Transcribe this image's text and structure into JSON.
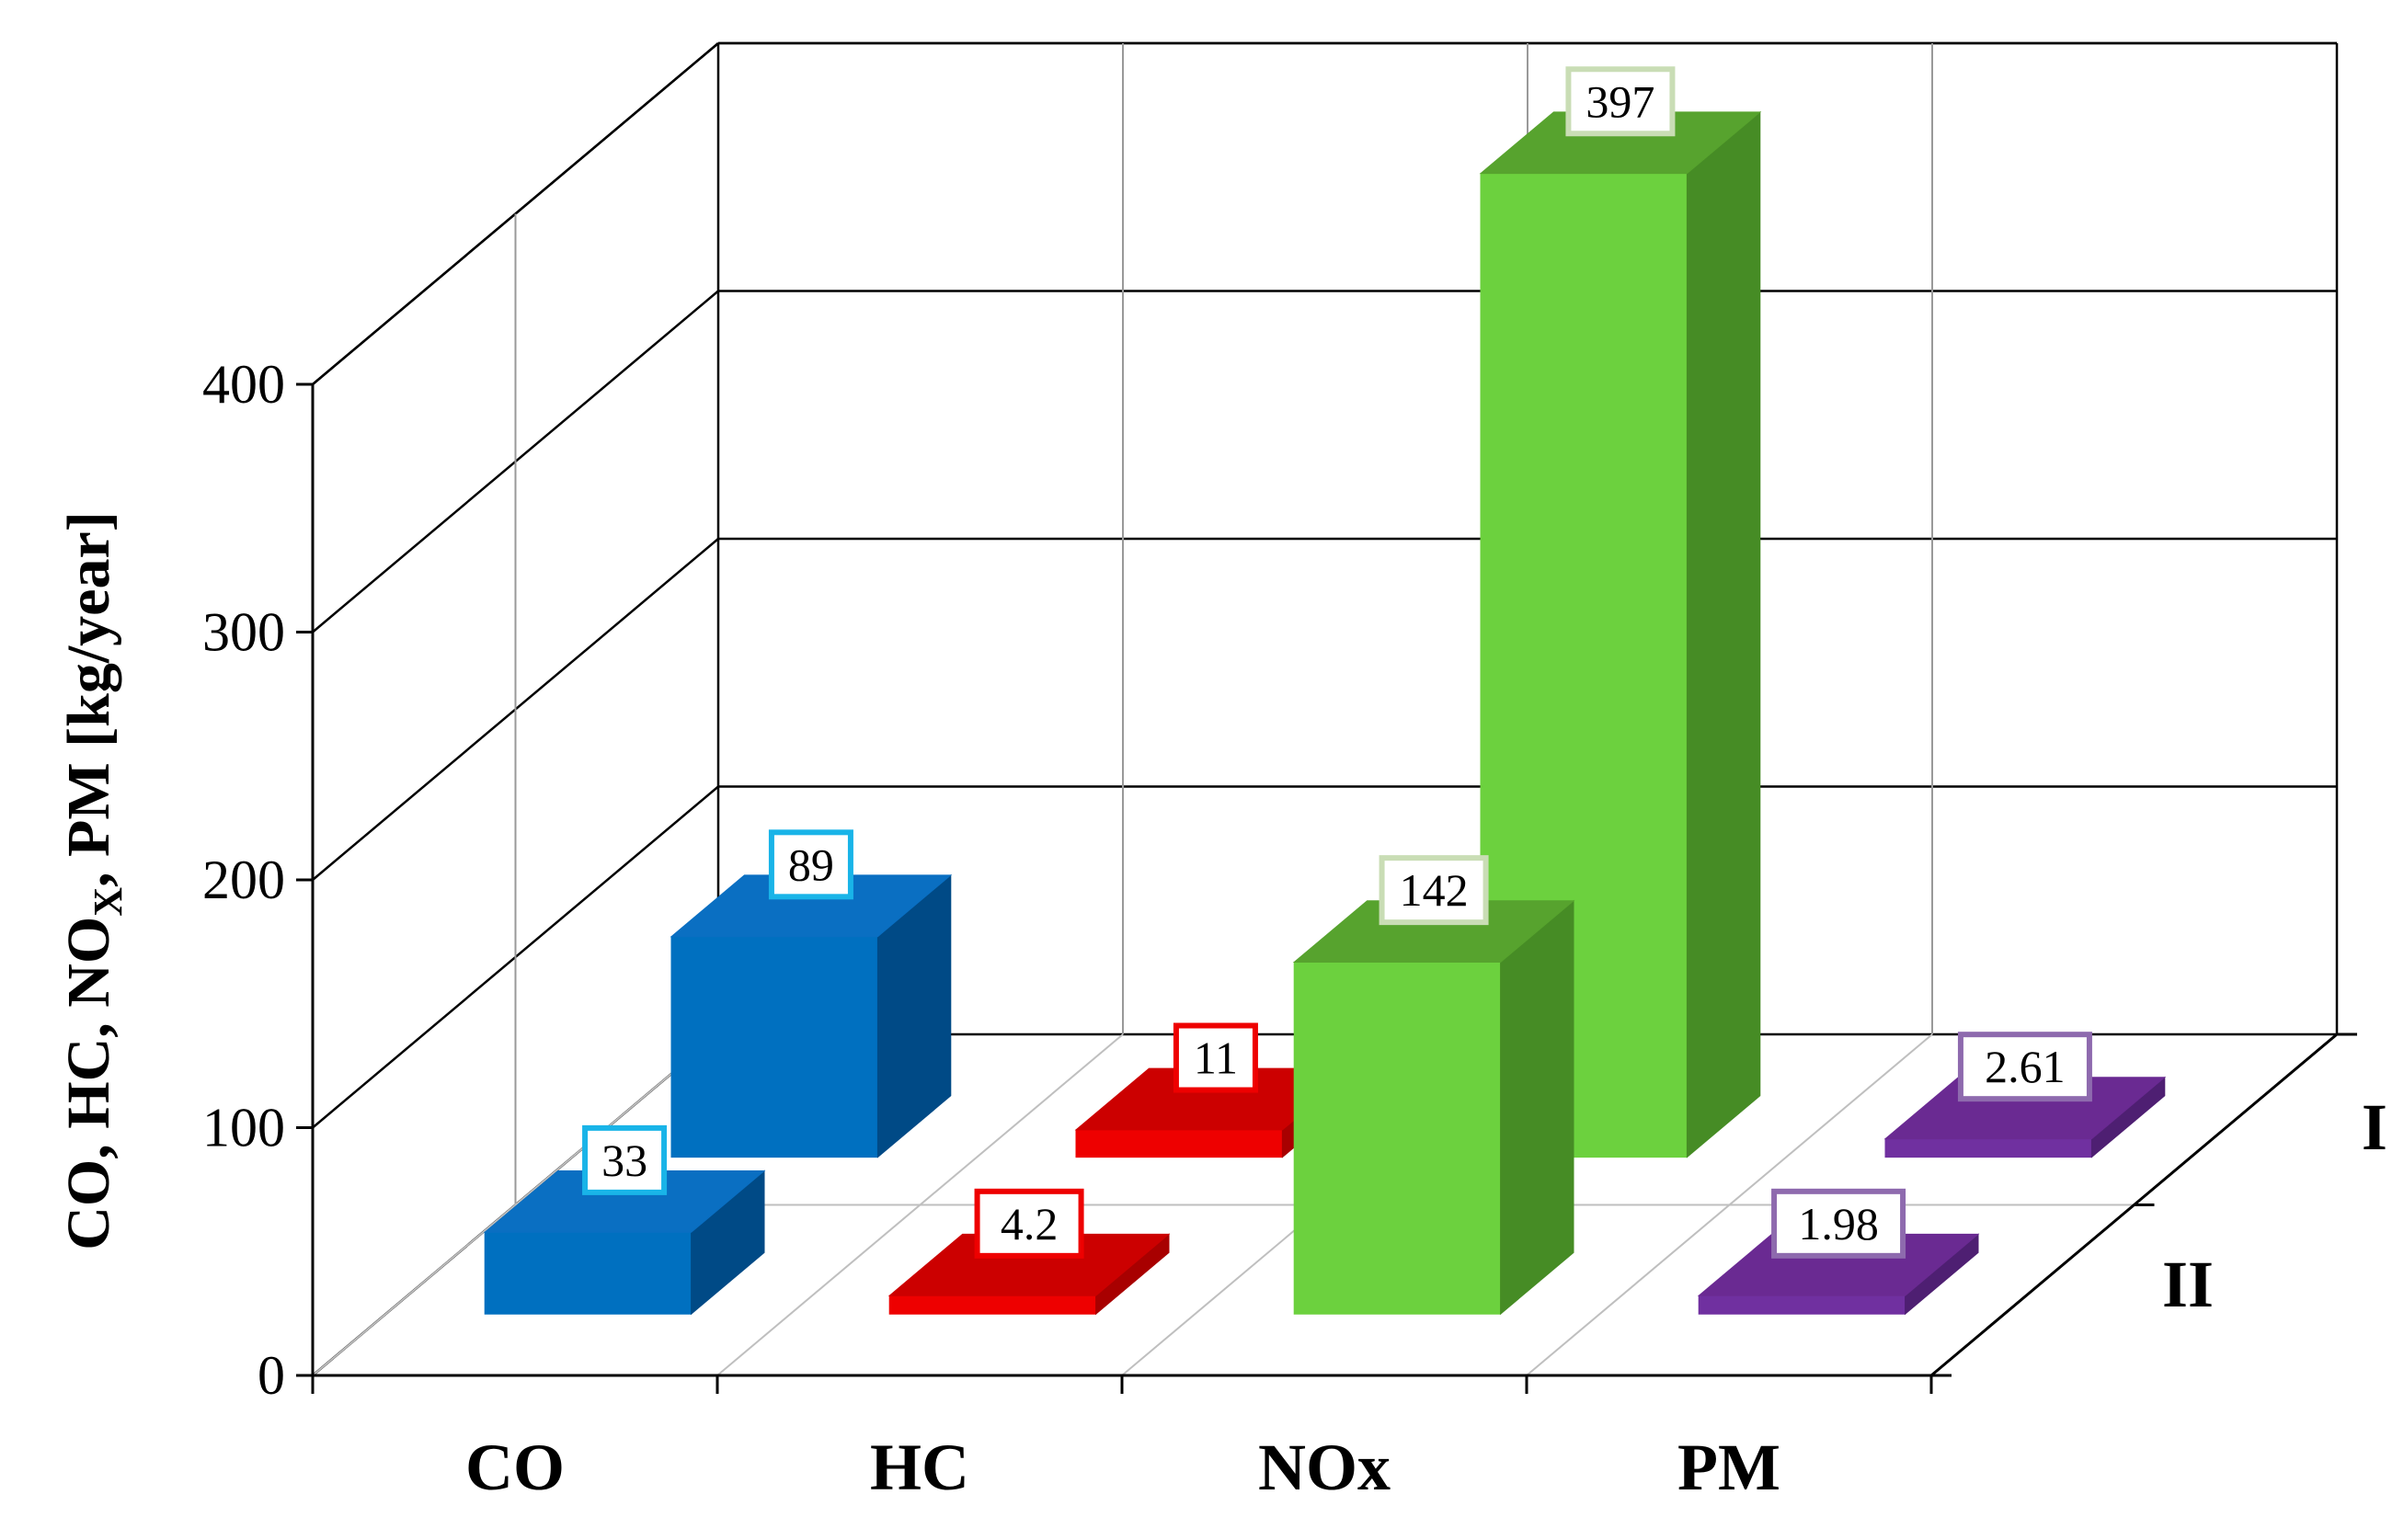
{
  "chart_data": {
    "type": "bar",
    "subtype": "3d-clustered-depth",
    "title": "",
    "ylabel": {
      "parts": [
        {
          "text": "CO, HC, NO"
        },
        {
          "text": "X",
          "sub": true
        },
        {
          "text": ", PM [kg/year]"
        }
      ]
    },
    "xlabel": "",
    "categories": [
      "CO",
      "HC",
      "NOx",
      "PM"
    ],
    "ylim": [
      0,
      400
    ],
    "yticks": [
      "0",
      "100",
      "200",
      "300",
      "400"
    ],
    "grid": true,
    "legend": "none",
    "series": [
      {
        "name": "I",
        "values": [
          89,
          11,
          397,
          2.61
        ],
        "labels": [
          "89",
          "11",
          "397",
          "2.61"
        ]
      },
      {
        "name": "II",
        "values": [
          33,
          4.2,
          142,
          1.98
        ],
        "labels": [
          "33",
          "4.2",
          "142",
          "1.98"
        ]
      }
    ],
    "category_colors": [
      {
        "front": "#0070C0",
        "side": "#004A86",
        "top": "#0a6fc2",
        "label_border": "#19B4E8"
      },
      {
        "front": "#EE0000",
        "side": "#A80000",
        "top": "#CC0000",
        "label_border": "#EE0000"
      },
      {
        "front": "#6CD13E",
        "side": "#468C25",
        "top": "#57A32E",
        "label_border": "#C9DDB5"
      },
      {
        "front": "#7030A0",
        "side": "#4E1F72",
        "top": "#6A2A92",
        "label_border": "#8E6AAE"
      }
    ],
    "grid_color": "#000000",
    "floor_line_color": "#BFBFBF"
  }
}
